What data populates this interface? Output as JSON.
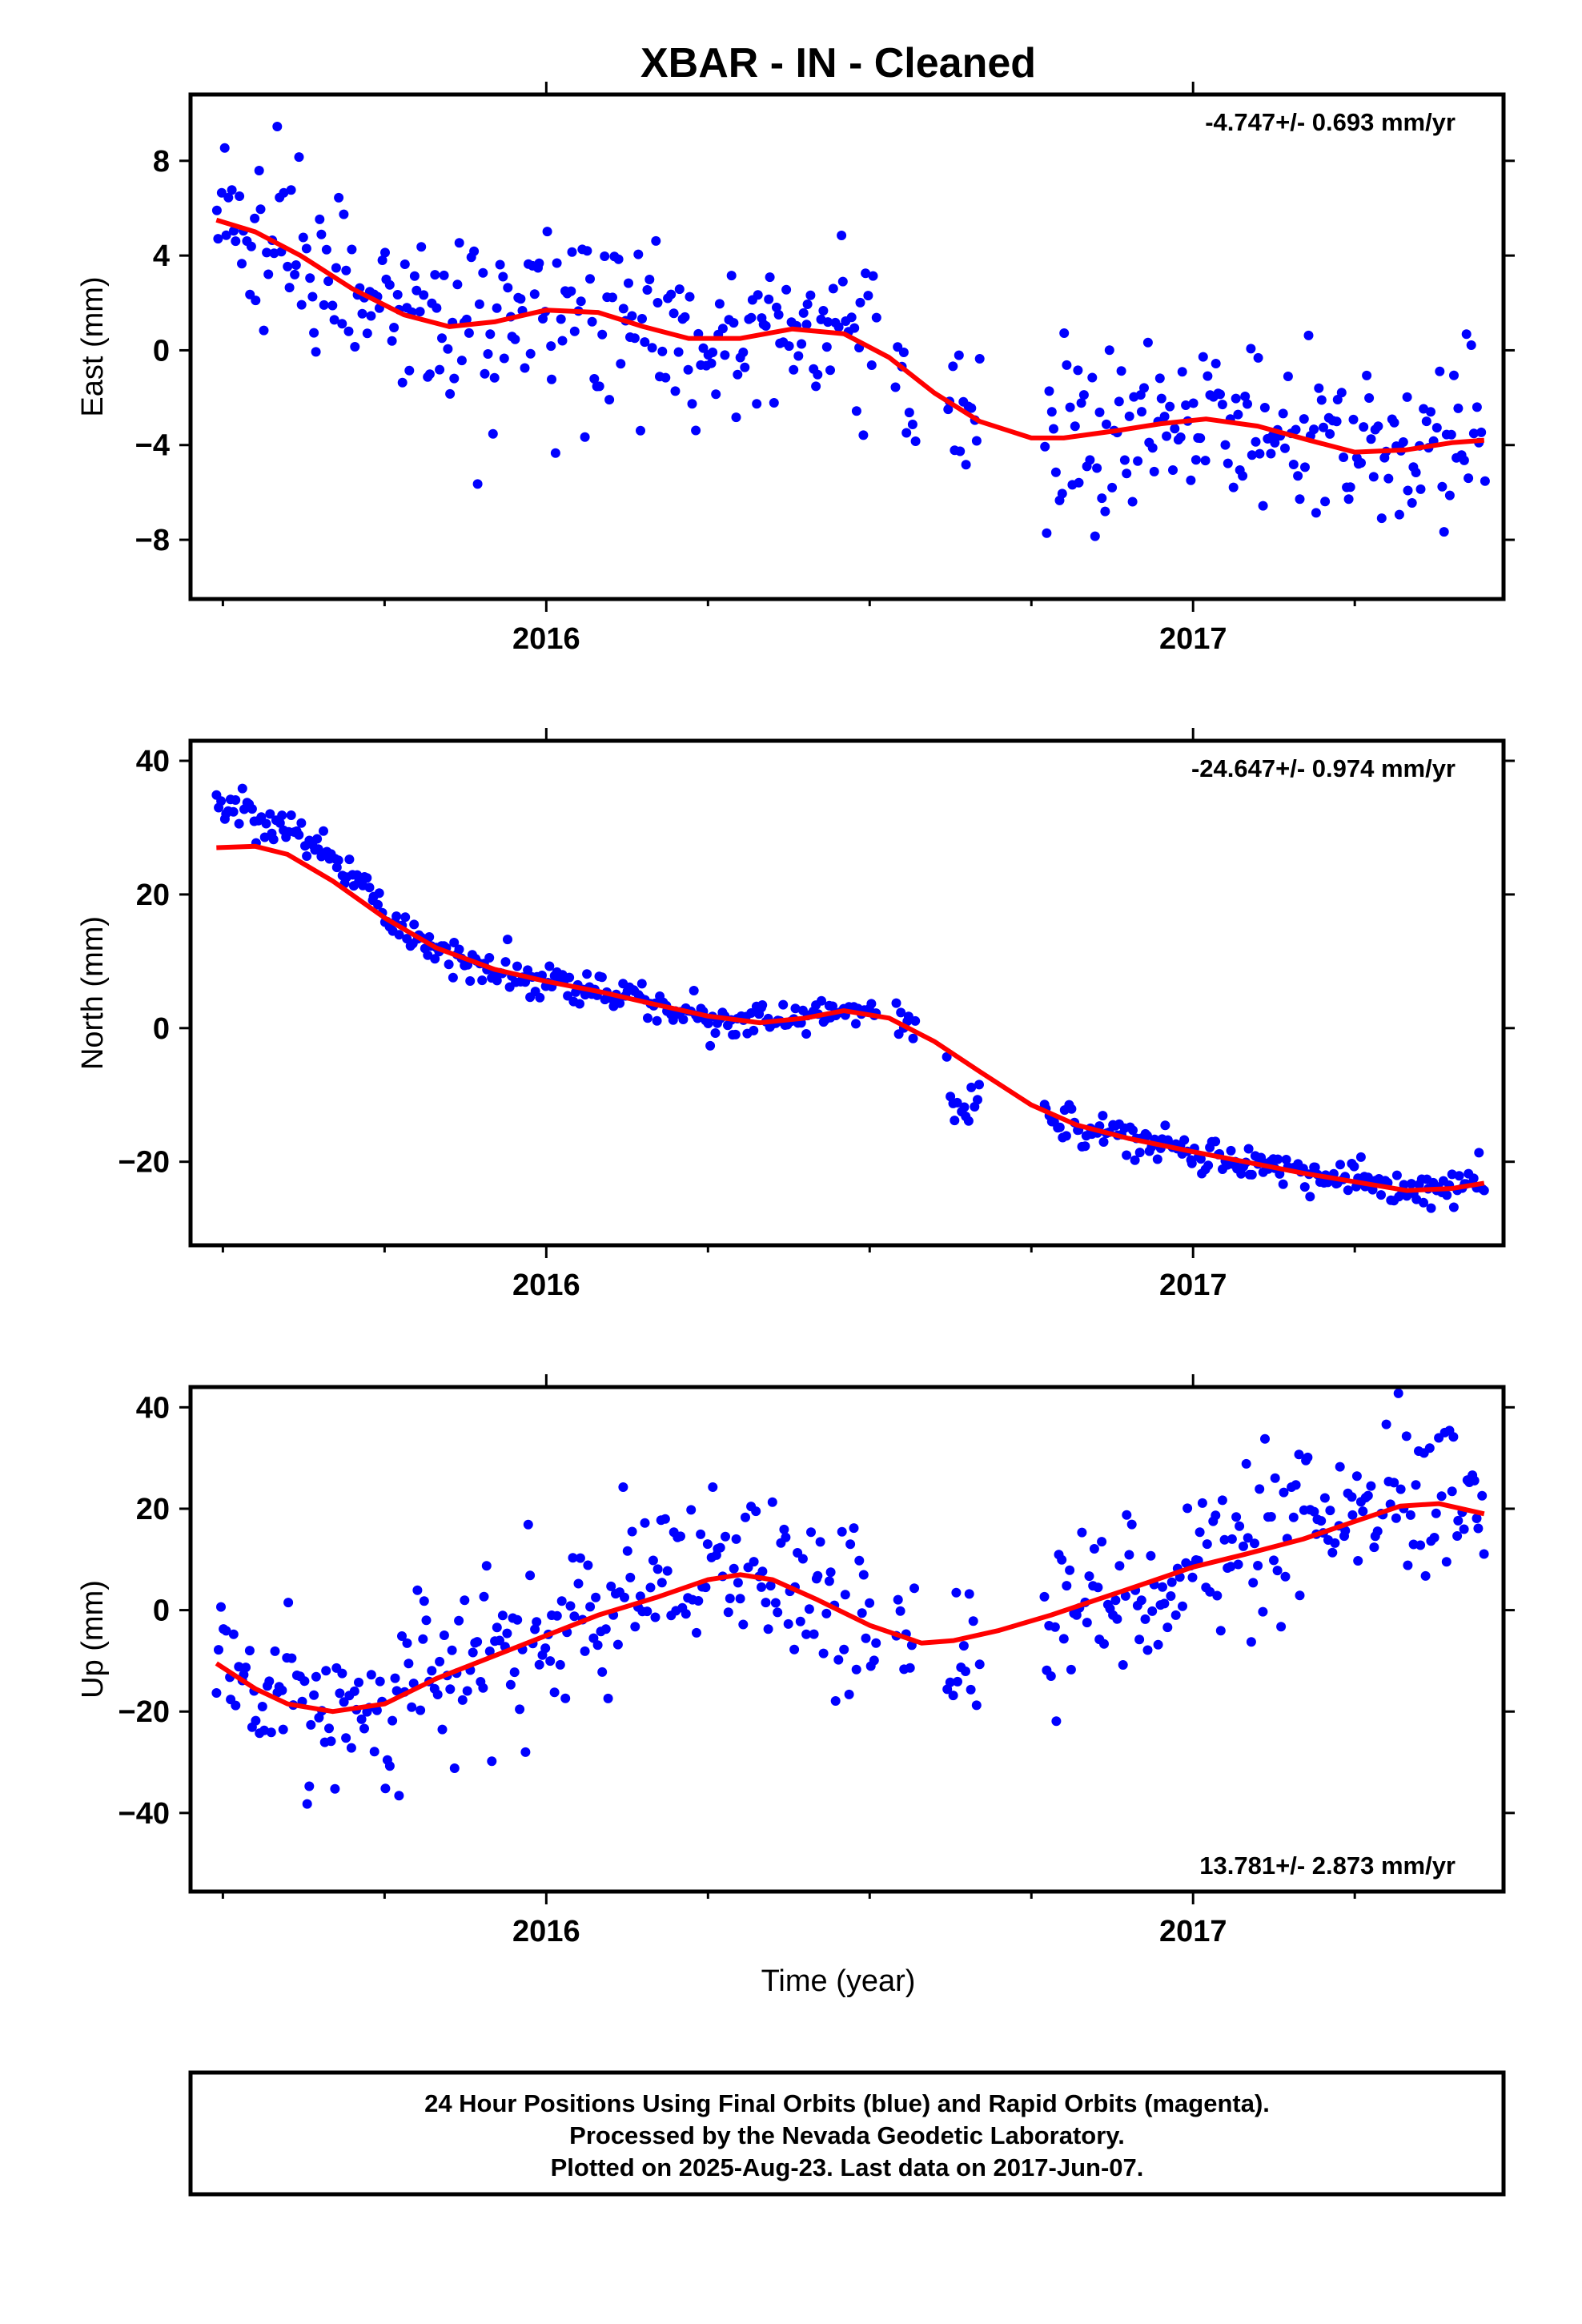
{
  "title": "XBAR  - IN - Cleaned",
  "xlabel": "Time (year)",
  "x_tick_labels": [
    "2016",
    "2017"
  ],
  "footer": {
    "lines": [
      "24 Hour Positions Using Final Orbits (blue) and Rapid Orbits (magenta).",
      "Processed by the Nevada Geodetic Laboratory.",
      "Plotted on 2025-Aug-23. Last data on 2017-Jun-07."
    ]
  },
  "colors": {
    "points": "#0000ff",
    "fit": "#ff0000",
    "frame": "#000000"
  },
  "chart_data": [
    {
      "type": "scatter",
      "ylabel": "East (mm)",
      "rate_text": "-4.747+/- 0.693 mm/yr",
      "rate_position": "top-right",
      "xlim": [
        2015.45,
        2017.48
      ],
      "ylim": [
        -10.5,
        10.8
      ],
      "yticks": [
        -8,
        -4,
        0,
        4,
        8
      ],
      "ytick_labels": [
        "−8",
        "−4",
        "0",
        "4",
        "8"
      ],
      "xticks_major": [
        2016,
        2017
      ],
      "xticks_minor": [
        2015.5,
        2015.75,
        2016.25,
        2016.5,
        2016.75,
        2017.25
      ],
      "series": [
        {
          "kind": "points",
          "noise": 1.9,
          "count": 460,
          "x_segments": [
            [
              2015.49,
              2016.51
            ],
            [
              2016.54,
              2016.57
            ],
            [
              2016.62,
              2016.67
            ],
            [
              2016.77,
              2017.45
            ]
          ]
        },
        {
          "kind": "line",
          "x": [
            2015.49,
            2015.55,
            2015.62,
            2015.7,
            2015.78,
            2015.85,
            2015.92,
            2016.0,
            2016.08,
            2016.15,
            2016.22,
            2016.3,
            2016.38,
            2016.46,
            2016.53,
            2016.6,
            2016.67,
            2016.75,
            2016.8,
            2016.88,
            2016.95,
            2017.02,
            2017.1,
            2017.18,
            2017.25,
            2017.33,
            2017.4,
            2017.45
          ],
          "y": [
            5.5,
            5.0,
            4.0,
            2.6,
            1.5,
            1.0,
            1.2,
            1.7,
            1.6,
            1.0,
            0.5,
            0.5,
            0.9,
            0.7,
            -0.3,
            -1.8,
            -3.0,
            -3.7,
            -3.7,
            -3.4,
            -3.1,
            -2.9,
            -3.2,
            -3.8,
            -4.3,
            -4.2,
            -3.9,
            -3.8
          ]
        }
      ]
    },
    {
      "type": "scatter",
      "ylabel": "North (mm)",
      "rate_text": "-24.647+/- 0.974 mm/yr",
      "rate_position": "top-right",
      "xlim": [
        2015.45,
        2017.48
      ],
      "ylim": [
        -32.5,
        43.0
      ],
      "yticks": [
        -20,
        0,
        20,
        40
      ],
      "ytick_labels": [
        "−20",
        "0",
        "20",
        "40"
      ],
      "xticks_major": [
        2016,
        2017
      ],
      "xticks_minor": [
        2015.5,
        2015.75,
        2016.25,
        2016.5,
        2016.75,
        2017.25
      ],
      "series": [
        {
          "kind": "points",
          "noise": 1.4,
          "count": 460,
          "x_segments": [
            [
              2015.49,
              2016.51
            ],
            [
              2016.54,
              2016.57
            ],
            [
              2016.62,
              2016.67
            ],
            [
              2016.77,
              2017.45
            ]
          ],
          "offsets": [
            {
              "x_range": [
                2015.49,
                2015.75
              ],
              "dy": [
                6,
                2
              ]
            },
            {
              "x_range": [
                2016.62,
                2016.67
              ],
              "dy": [
                -9,
                -4
              ]
            }
          ]
        },
        {
          "kind": "line",
          "x": [
            2015.49,
            2015.55,
            2015.6,
            2015.67,
            2015.75,
            2015.83,
            2015.92,
            2016.0,
            2016.08,
            2016.17,
            2016.25,
            2016.33,
            2016.4,
            2016.46,
            2016.53,
            2016.6,
            2016.67,
            2016.75,
            2016.82,
            2016.9,
            2017.0,
            2017.08,
            2017.17,
            2017.25,
            2017.33,
            2017.4,
            2017.45
          ],
          "y": [
            27.0,
            27.2,
            26.0,
            22.0,
            16.5,
            12.0,
            8.8,
            7.0,
            5.5,
            3.5,
            1.8,
            0.8,
            1.5,
            2.6,
            1.5,
            -2.0,
            -6.5,
            -11.5,
            -14.5,
            -16.5,
            -18.5,
            -20.0,
            -21.7,
            -23.0,
            -24.3,
            -24.0,
            -23.2
          ]
        }
      ]
    },
    {
      "type": "scatter",
      "ylabel": "Up (mm)",
      "rate_text": "13.781+/- 2.873 mm/yr",
      "rate_position": "bottom-right",
      "xlim": [
        2015.45,
        2017.48
      ],
      "ylim": [
        -55.5,
        44.0
      ],
      "yticks": [
        -40,
        -20,
        0,
        20,
        40
      ],
      "ytick_labels": [
        "−40",
        "−20",
        "0",
        "20",
        "40"
      ],
      "xticks_major": [
        2016,
        2017
      ],
      "xticks_minor": [
        2015.5,
        2015.75,
        2016.25,
        2016.5,
        2016.75,
        2017.25
      ],
      "series": [
        {
          "kind": "points",
          "noise": 8.0,
          "count": 460,
          "x_segments": [
            [
              2015.49,
              2016.51
            ],
            [
              2016.54,
              2016.57
            ],
            [
              2016.62,
              2016.67
            ],
            [
              2016.77,
              2017.45
            ]
          ]
        },
        {
          "kind": "line",
          "x": [
            2015.49,
            2015.55,
            2015.6,
            2015.67,
            2015.75,
            2015.83,
            2015.92,
            2016.0,
            2016.08,
            2016.17,
            2016.25,
            2016.3,
            2016.35,
            2016.42,
            2016.5,
            2016.58,
            2016.63,
            2016.7,
            2016.78,
            2016.85,
            2016.92,
            2017.0,
            2017.08,
            2017.17,
            2017.25,
            2017.32,
            2017.38,
            2017.45
          ],
          "y": [
            -10.5,
            -15.5,
            -18.5,
            -20.0,
            -18.5,
            -13.5,
            -9.0,
            -5.0,
            -1.0,
            2.5,
            6.0,
            7.0,
            6.0,
            2.0,
            -3.0,
            -6.5,
            -6.0,
            -4.0,
            -1.0,
            2.0,
            5.0,
            8.5,
            11.0,
            14.0,
            17.5,
            20.5,
            21.0,
            19.0
          ]
        }
      ]
    }
  ]
}
